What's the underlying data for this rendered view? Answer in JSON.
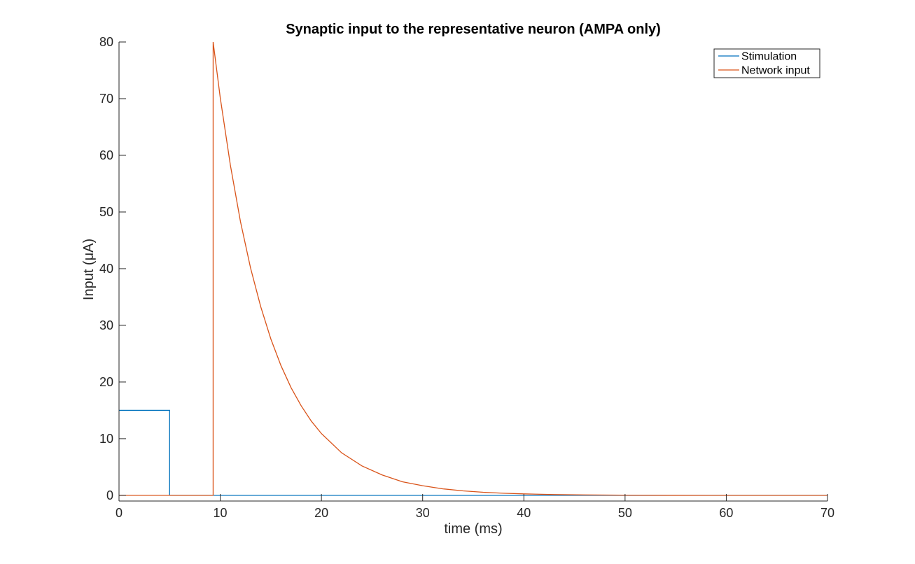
{
  "chart_data": {
    "type": "line",
    "title": "Synaptic input to the representative neuron (AMPA only)",
    "xlabel": "time (ms)",
    "ylabel": "Input (μA)",
    "xlim": [
      0,
      70
    ],
    "ylim": [
      -1,
      80
    ],
    "xticks": [
      0,
      10,
      20,
      30,
      40,
      50,
      60,
      70
    ],
    "yticks": [
      0,
      10,
      20,
      30,
      40,
      50,
      60,
      70,
      80
    ],
    "grid": false,
    "legend_position": "top-right",
    "series": [
      {
        "name": "Stimulation",
        "color": "#0072BD",
        "x": [
          0,
          5,
          5,
          70
        ],
        "y": [
          15,
          15,
          0,
          0
        ]
      },
      {
        "name": "Network input",
        "color": "#D95319",
        "x": [
          0,
          9.3,
          9.3,
          10,
          11,
          12,
          13,
          14,
          15,
          16,
          17,
          18,
          19,
          20,
          22,
          24,
          26,
          28,
          30,
          32,
          34,
          36,
          38,
          40,
          43,
          46,
          50,
          55,
          60,
          65,
          70
        ],
        "y": [
          0,
          0,
          80,
          70.2,
          58.3,
          48.3,
          40.1,
          33.3,
          27.6,
          22.9,
          19.0,
          15.8,
          13.1,
          10.9,
          7.5,
          5.2,
          3.6,
          2.4,
          1.7,
          1.15,
          0.79,
          0.54,
          0.37,
          0.26,
          0.14,
          0.08,
          0.03,
          0.01,
          0.0,
          0.0,
          0.0
        ]
      }
    ]
  }
}
